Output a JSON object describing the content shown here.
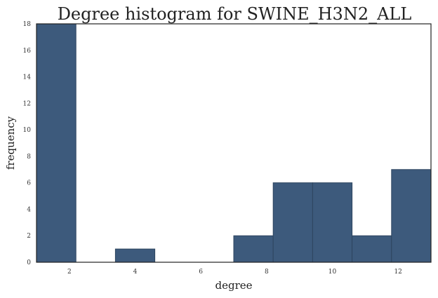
{
  "chart_data": {
    "type": "bar",
    "title": "Degree histogram for SWINE_H3N2_ALL",
    "xlabel": "degree",
    "ylabel": "frequency",
    "xlim": [
      1,
      13
    ],
    "ylim": [
      0,
      18
    ],
    "xticks": [
      2,
      4,
      6,
      8,
      10,
      12
    ],
    "yticks": [
      0,
      2,
      4,
      6,
      8,
      10,
      12,
      14,
      16,
      18
    ],
    "bin_edges": [
      1.0,
      2.2,
      3.4,
      4.6,
      5.8,
      7.0,
      8.2,
      9.4,
      10.6,
      11.8,
      13.0
    ],
    "values": [
      18,
      0,
      1,
      0,
      0,
      2,
      6,
      6,
      2,
      7
    ],
    "bar_color": "#3d5a7c",
    "grid": false
  }
}
